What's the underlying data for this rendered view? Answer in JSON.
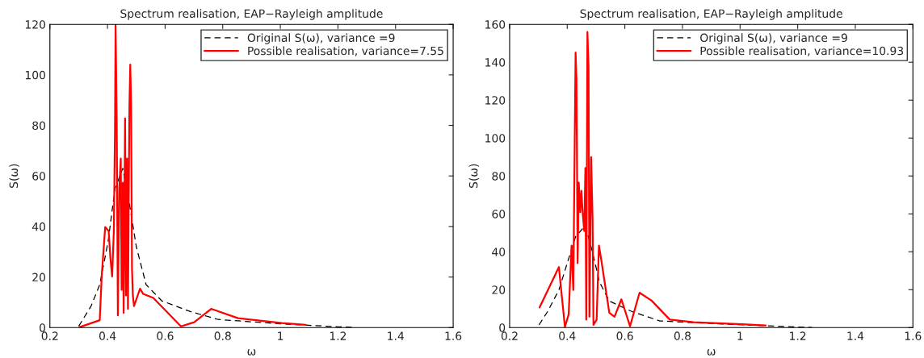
{
  "chart_data": [
    {
      "type": "line",
      "title": "Spectrum realisation, EAP−Rayleigh amplitude",
      "xlabel": "ω",
      "ylabel": "S(ω)",
      "xlim": [
        0.2,
        1.6
      ],
      "ylim": [
        0,
        120
      ],
      "xticks": [
        0.2,
        0.4,
        0.6,
        0.8,
        1,
        1.2,
        1.4,
        1.6
      ],
      "yticks": [
        0,
        20,
        40,
        60,
        80,
        100,
        120
      ],
      "grid": false,
      "legend": "top right",
      "series": [
        {
          "name": "Original S(ω), variance =9",
          "color": "#000000",
          "line_style": "dashed",
          "x": [
            0.3,
            0.343,
            0.373,
            0.402,
            0.426,
            0.453,
            0.476,
            0.5,
            0.534,
            0.588,
            0.686,
            0.784,
            1.0,
            1.2,
            1.25
          ],
          "values": [
            0.5,
            8.5,
            17,
            34,
            55,
            63,
            49,
            32,
            17,
            10.6,
            6.4,
            3.2,
            1.5,
            0.3,
            0.1
          ]
        },
        {
          "name": "Possible realisation, variance=7.55",
          "color": "#ff0000",
          "line_style": "solid",
          "x": [
            0.304,
            0.373,
            0.38,
            0.392,
            0.404,
            0.41,
            0.416,
            0.422,
            0.426,
            0.428,
            0.432,
            0.436,
            0.441,
            0.446,
            0.449,
            0.453,
            0.456,
            0.461,
            0.464,
            0.468,
            0.471,
            0.476,
            0.479,
            0.482,
            0.485,
            0.488,
            0.492,
            0.513,
            0.524,
            0.559,
            0.655,
            0.701,
            0.76,
            0.853,
            1.005,
            1.088
          ],
          "values": [
            0.2,
            2.9,
            20.7,
            39.8,
            38.2,
            27.6,
            20.2,
            38.2,
            78.6,
            120,
            81.7,
            4.8,
            55.2,
            66.9,
            14.9,
            57.3,
            5.8,
            82.8,
            12.7,
            66.9,
            7.4,
            87.1,
            104.1,
            88.1,
            23.4,
            12.7,
            8.5,
            15.4,
            13.3,
            11.7,
            0.5,
            2.1,
            7.4,
            3.7,
            1.8,
            1.1
          ]
        }
      ]
    },
    {
      "type": "line",
      "title": "Spectrum realisation, EAP−Rayleigh amplitude",
      "xlabel": "ω",
      "ylabel": "S(ω)",
      "xlim": [
        0.2,
        1.6
      ],
      "ylim": [
        0,
        160
      ],
      "xticks": [
        0.2,
        0.4,
        0.6,
        0.8,
        1,
        1.2,
        1.4,
        1.6
      ],
      "yticks": [
        0,
        20,
        40,
        60,
        80,
        100,
        120,
        140,
        160
      ],
      "grid": false,
      "legend": "top right",
      "series": [
        {
          "name": "Original S(ω), variance =9",
          "color": "#000000",
          "line_style": "dashed",
          "x": [
            0.302,
            0.332,
            0.371,
            0.4,
            0.429,
            0.463,
            0.488,
            0.512,
            0.546,
            0.624,
            0.722,
            0.85,
            1.0,
            1.2,
            1.25
          ],
          "values": [
            1.4,
            8.5,
            19.8,
            34,
            48,
            53.8,
            39.6,
            24,
            14,
            8.5,
            3.5,
            2.5,
            1.5,
            0.3,
            0.1
          ]
        },
        {
          "name": "Possible realisation, variance=10.93",
          "color": "#ff0000",
          "line_style": "solid",
          "x": [
            0.304,
            0.371,
            0.392,
            0.405,
            0.415,
            0.421,
            0.426,
            0.429,
            0.432,
            0.436,
            0.44,
            0.445,
            0.449,
            0.454,
            0.459,
            0.463,
            0.466,
            0.47,
            0.474,
            0.477,
            0.483,
            0.488,
            0.491,
            0.502,
            0.51,
            0.517,
            0.546,
            0.564,
            0.588,
            0.618,
            0.651,
            0.693,
            0.756,
            0.839,
            1.006,
            1.089
          ],
          "values": [
            10.6,
            31.9,
            0.3,
            7.1,
            43.2,
            19.8,
            99.1,
            145.1,
            131.7,
            34,
            76.5,
            60.9,
            72.2,
            59.5,
            51,
            84.2,
            4.2,
            156,
            137.4,
            5.7,
            89.9,
            56.6,
            1.4,
            4.2,
            43.2,
            36.8,
            7.8,
            5.7,
            14.9,
            0.7,
            18.4,
            14.2,
            4.2,
            2.8,
            1.8,
            1.1
          ]
        }
      ]
    }
  ]
}
